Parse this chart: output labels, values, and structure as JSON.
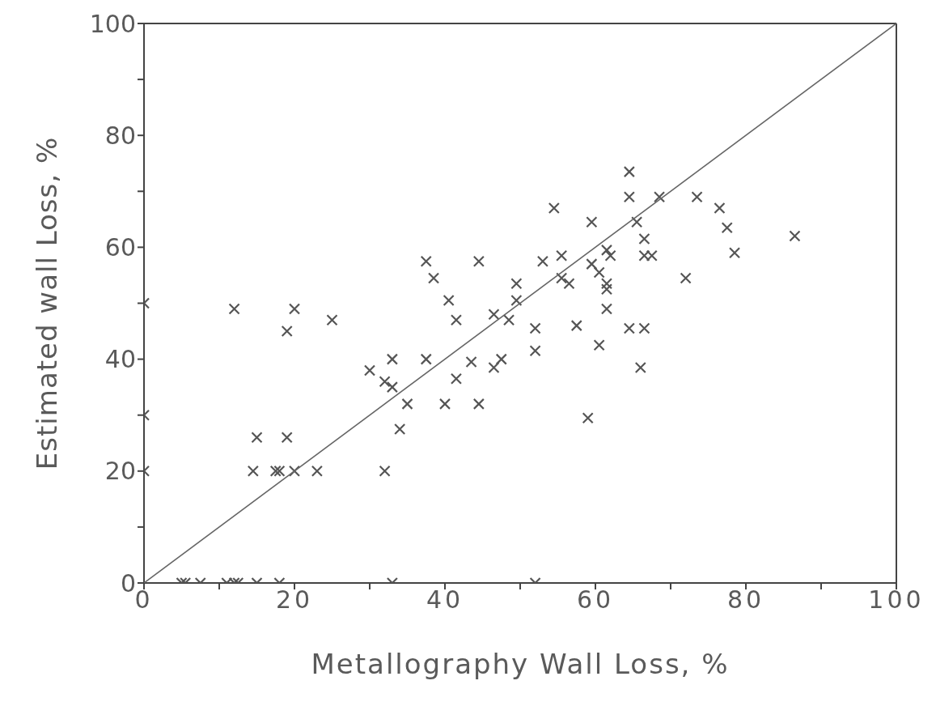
{
  "chart_data": {
    "type": "scatter",
    "xlabel": "Metallography Wall Loss, %",
    "ylabel": "Estimated wall Loss, %",
    "xlim": [
      0,
      100
    ],
    "ylim": [
      0,
      100
    ],
    "xticks": [
      0,
      {
        "value": 10,
        "label": null
      },
      20,
      {
        "value": 30,
        "label": null
      },
      40,
      {
        "value": 50,
        "label": null
      },
      60,
      {
        "value": 70,
        "label": null
      },
      80,
      {
        "value": 90,
        "label": null
      },
      100
    ],
    "yticks": [
      0,
      {
        "value": 10,
        "label": null
      },
      20,
      {
        "value": 30,
        "label": null
      },
      40,
      {
        "value": 50,
        "label": null
      },
      60,
      {
        "value": 70,
        "label": null
      },
      80,
      {
        "value": 90,
        "label": null
      },
      100
    ],
    "grid": false,
    "legend": false,
    "series": [
      {
        "marker": "cross",
        "color": "#555555",
        "x": [
          5,
          5.5,
          7.5,
          11,
          12,
          12.5,
          15,
          18,
          33,
          52,
          0,
          0,
          0,
          12,
          19,
          20,
          25,
          15,
          19,
          14.5,
          17.5,
          18,
          20,
          23,
          32,
          30,
          32,
          33,
          33,
          34,
          35,
          37.5,
          37.5,
          38.5,
          40,
          40.5,
          41.5,
          41.5,
          43.5,
          44.5,
          44.5,
          46.5,
          46.5,
          47.5,
          48.5,
          49.5,
          49.5,
          52,
          52,
          53,
          54.5,
          55.5,
          55.5,
          56.5,
          57.5,
          59,
          59.5,
          59.5,
          60.5,
          60.5,
          61.5,
          61.5,
          61.5,
          61.5,
          62,
          64.5,
          64.5,
          64.5,
          65.5,
          66,
          66.5,
          66.5,
          66.5,
          67.5,
          68.5,
          72,
          73.5,
          76.5,
          77.5,
          78.5,
          86.5
        ],
        "values": [
          0,
          0,
          0,
          0,
          0,
          0,
          0,
          0,
          0,
          0,
          50,
          30,
          20,
          49,
          45,
          49,
          47,
          26,
          26,
          20,
          20,
          20,
          20,
          20,
          20,
          38,
          36,
          40,
          35,
          27.5,
          32,
          40,
          57.5,
          54.5,
          32,
          50.5,
          47,
          36.5,
          39.5,
          57.5,
          32,
          48,
          38.5,
          40,
          47,
          53.5,
          50.5,
          45.5,
          41.5,
          57.5,
          67,
          58.5,
          54.5,
          53.5,
          46,
          29.5,
          64.5,
          57,
          55.5,
          42.5,
          59.5,
          53.5,
          52.5,
          49,
          58.5,
          73.5,
          69,
          45.5,
          64.5,
          38.5,
          61.5,
          58.5,
          45.5,
          58.5,
          69,
          54.5,
          69,
          67,
          63.5,
          59,
          62
        ]
      },
      {
        "type": "line",
        "marker": "none",
        "color": "#666666",
        "x": [
          0,
          100
        ],
        "values": [
          0,
          100
        ]
      }
    ]
  }
}
